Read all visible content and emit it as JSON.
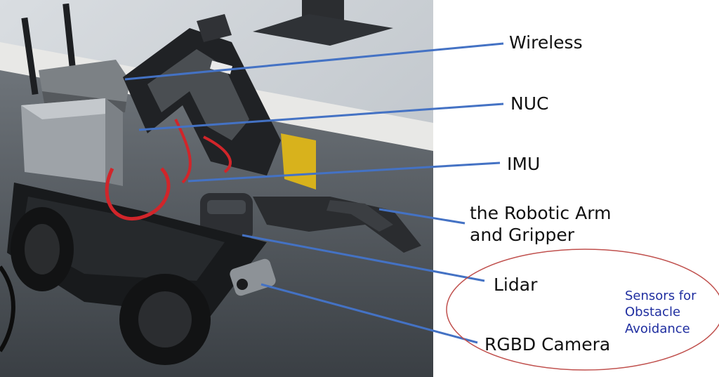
{
  "labels": {
    "wireless": "Wireless",
    "nuc": "NUC",
    "imu": "IMU",
    "arm_line1": "the Robotic Arm",
    "arm_line2": "and Gripper",
    "lidar": "Lidar",
    "rgbd": "RGBD Camera"
  },
  "note": {
    "line1": "Sensors for",
    "line2": "Obstacle",
    "line3": "Avoidance"
  },
  "colors": {
    "leader_line": "#4472c4",
    "ellipse": "#c0504d",
    "note_text": "#1f2ea0",
    "label_text": "#111111"
  }
}
